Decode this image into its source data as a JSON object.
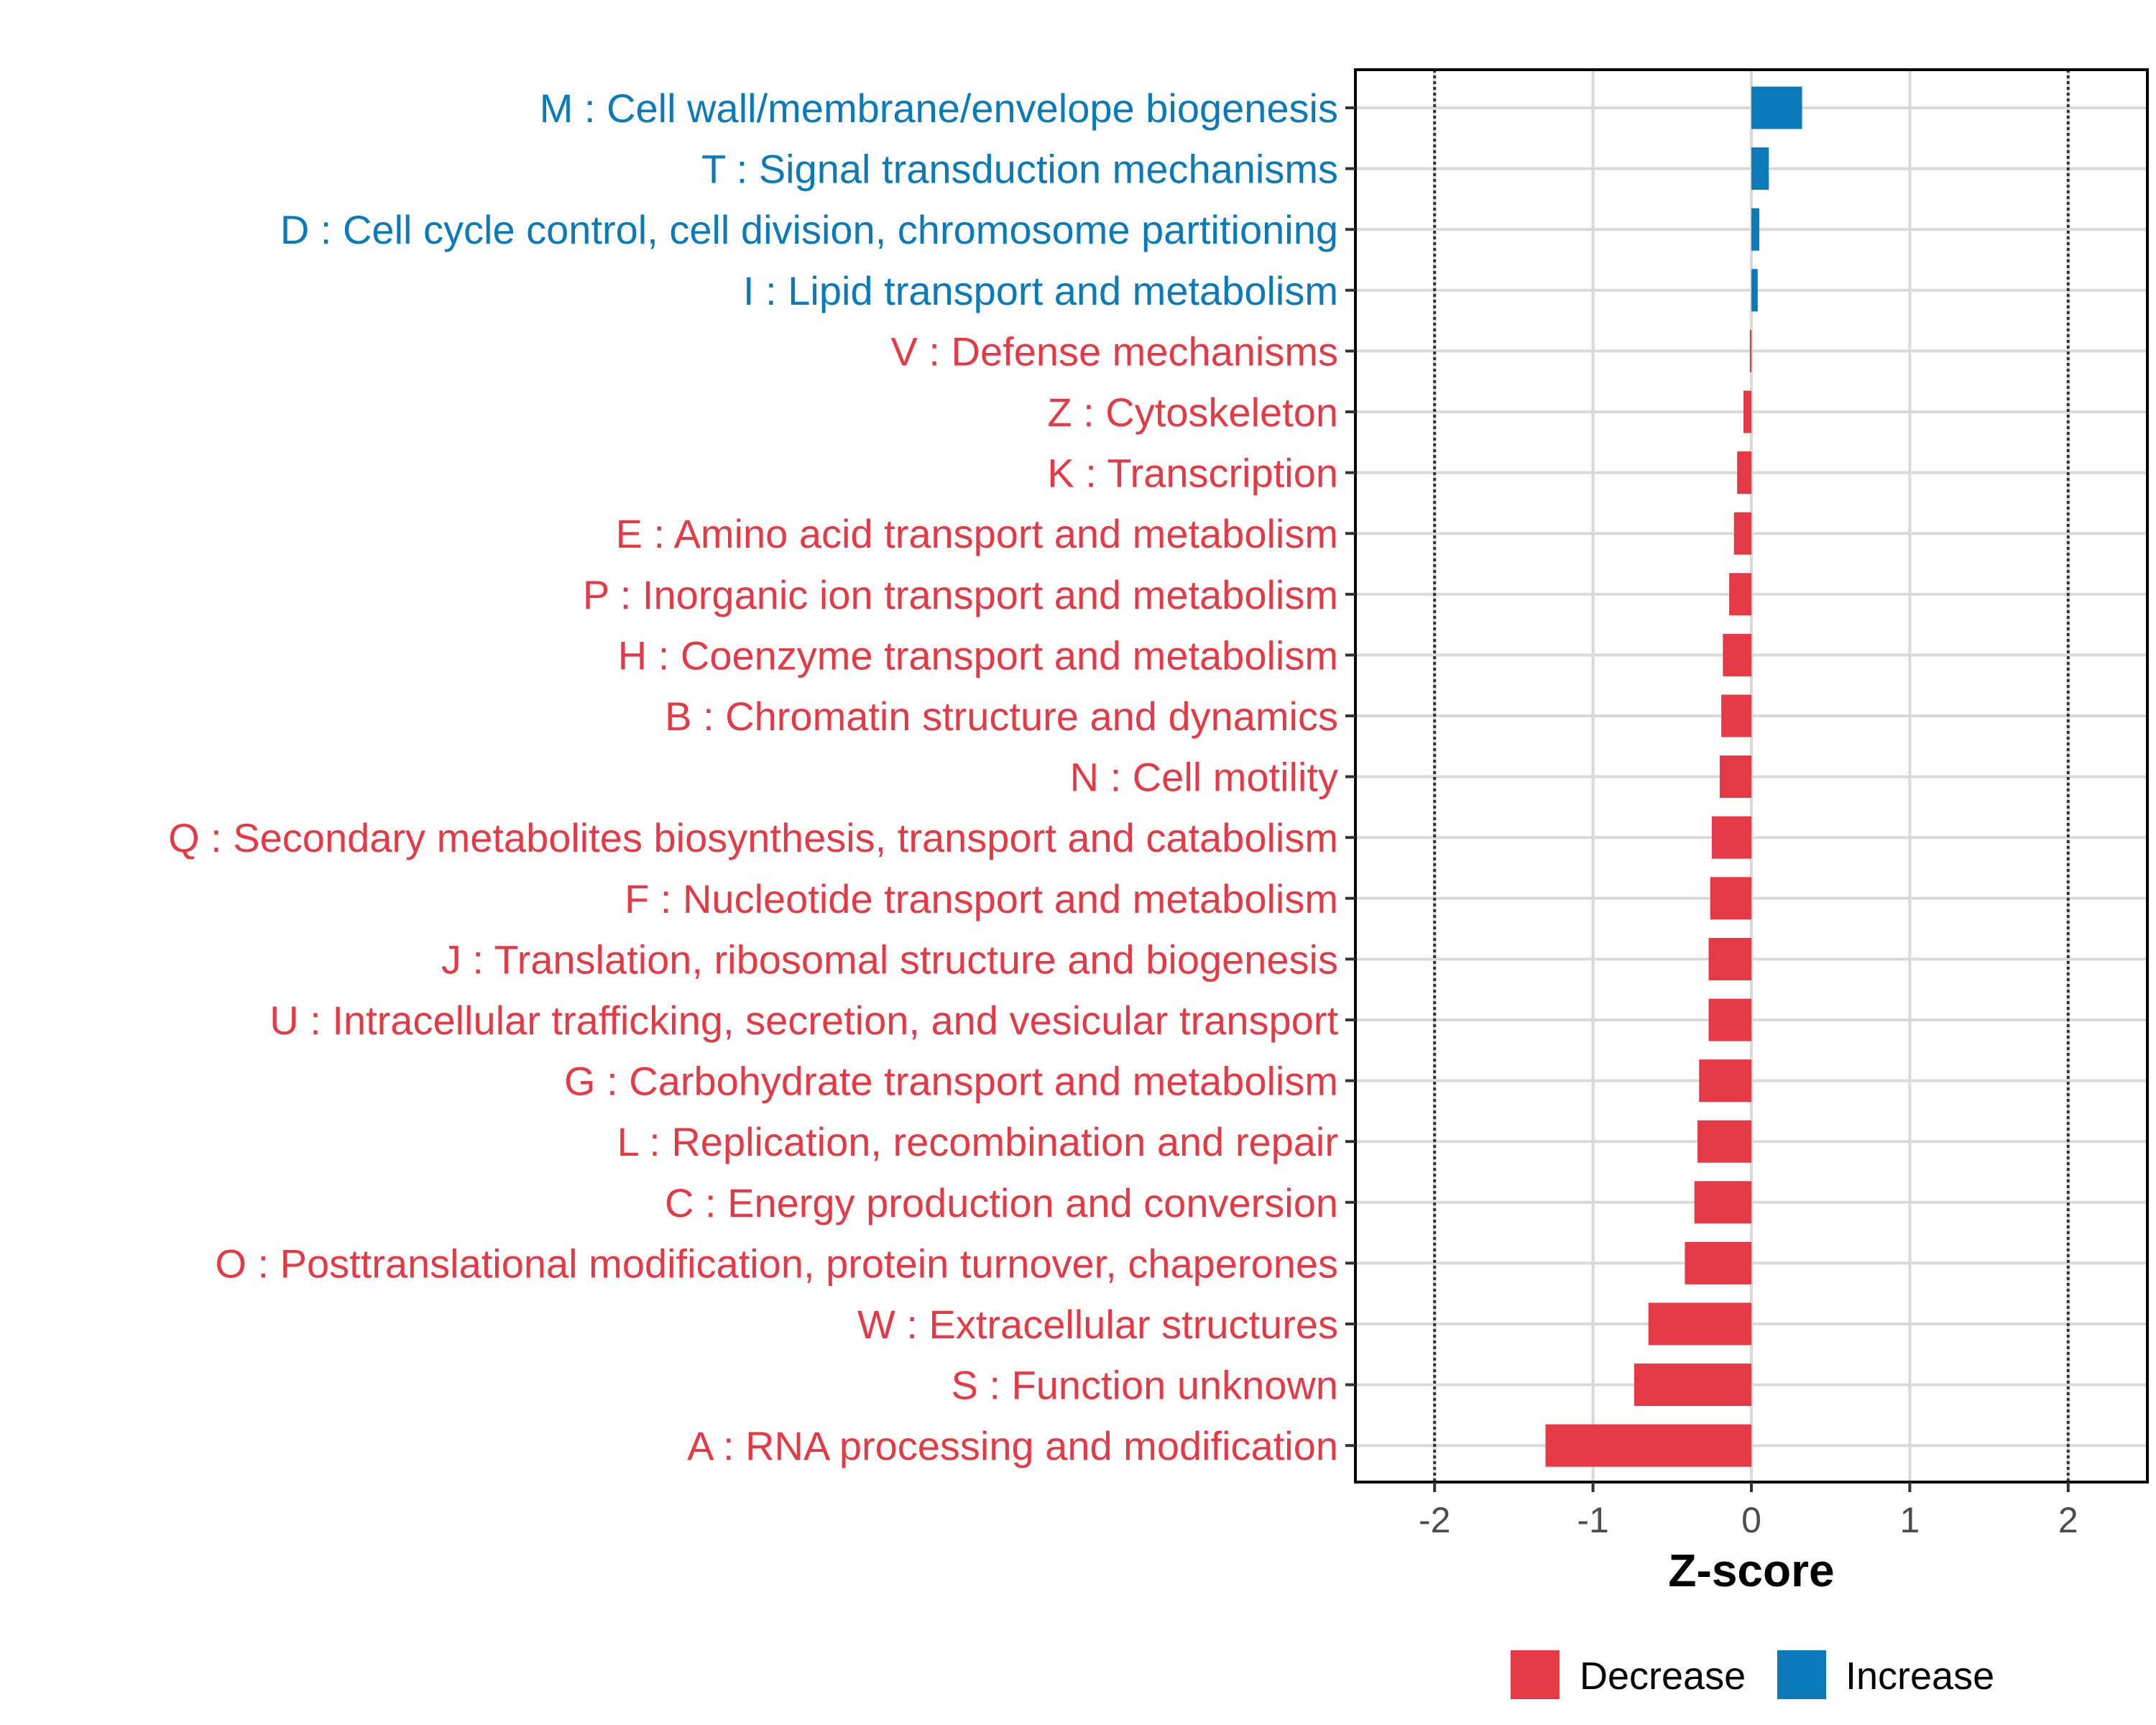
{
  "chart_data": {
    "type": "bar",
    "orientation": "horizontal",
    "title": "",
    "xlabel": "Z-score",
    "ylabel": "",
    "xlim": [
      -2.5,
      2.5
    ],
    "x_ticks": [
      -2,
      -1,
      0,
      1,
      2
    ],
    "x_tick_labels": [
      "-2",
      "-1",
      "0",
      "1",
      "2"
    ],
    "reference_lines": [
      -2,
      2
    ],
    "grid": true,
    "legend_position": "bottom-right",
    "colors": {
      "Decrease": "#e63946",
      "Increase": "#0a7ab8",
      "grid": "#d9d9d9",
      "reference_line": "#333333",
      "panel_border": "#000000"
    },
    "legend": [
      {
        "name": "Decrease"
      },
      {
        "name": "Increase"
      }
    ],
    "bars": [
      {
        "label": "M : Cell wall/membrane/envelope biogenesis",
        "value": 0.32,
        "group": "Increase"
      },
      {
        "label": "T : Signal transduction mechanisms",
        "value": 0.11,
        "group": "Increase"
      },
      {
        "label": "D : Cell cycle control, cell division, chromosome partitioning",
        "value": 0.05,
        "group": "Increase"
      },
      {
        "label": "I : Lipid transport and metabolism",
        "value": 0.04,
        "group": "Increase"
      },
      {
        "label": "V : Defense mechanisms",
        "value": -0.01,
        "group": "Decrease"
      },
      {
        "label": "Z : Cytoskeleton",
        "value": -0.05,
        "group": "Decrease"
      },
      {
        "label": "K : Transcription",
        "value": -0.09,
        "group": "Decrease"
      },
      {
        "label": "E : Amino acid transport and metabolism",
        "value": -0.11,
        "group": "Decrease"
      },
      {
        "label": "P : Inorganic ion transport and metabolism",
        "value": -0.14,
        "group": "Decrease"
      },
      {
        "label": "H : Coenzyme transport and metabolism",
        "value": -0.18,
        "group": "Decrease"
      },
      {
        "label": "B : Chromatin structure and dynamics",
        "value": -0.19,
        "group": "Decrease"
      },
      {
        "label": "N : Cell motility",
        "value": -0.2,
        "group": "Decrease"
      },
      {
        "label": "Q : Secondary metabolites biosynthesis, transport and catabolism",
        "value": -0.25,
        "group": "Decrease"
      },
      {
        "label": "F : Nucleotide transport and metabolism",
        "value": -0.26,
        "group": "Decrease"
      },
      {
        "label": "J : Translation, ribosomal structure and biogenesis",
        "value": -0.27,
        "group": "Decrease"
      },
      {
        "label": "U : Intracellular trafficking, secretion, and vesicular transport",
        "value": -0.27,
        "group": "Decrease"
      },
      {
        "label": "G : Carbohydrate transport and metabolism",
        "value": -0.33,
        "group": "Decrease"
      },
      {
        "label": "L : Replication, recombination and repair",
        "value": -0.34,
        "group": "Decrease"
      },
      {
        "label": "C : Energy production and conversion",
        "value": -0.36,
        "group": "Decrease"
      },
      {
        "label": "O : Posttranslational modification, protein turnover, chaperones",
        "value": -0.42,
        "group": "Decrease"
      },
      {
        "label": "W : Extracellular structures",
        "value": -0.65,
        "group": "Decrease"
      },
      {
        "label": "S : Function unknown",
        "value": -0.74,
        "group": "Decrease"
      },
      {
        "label": "A : RNA processing and modification",
        "value": -1.3,
        "group": "Decrease"
      }
    ]
  }
}
